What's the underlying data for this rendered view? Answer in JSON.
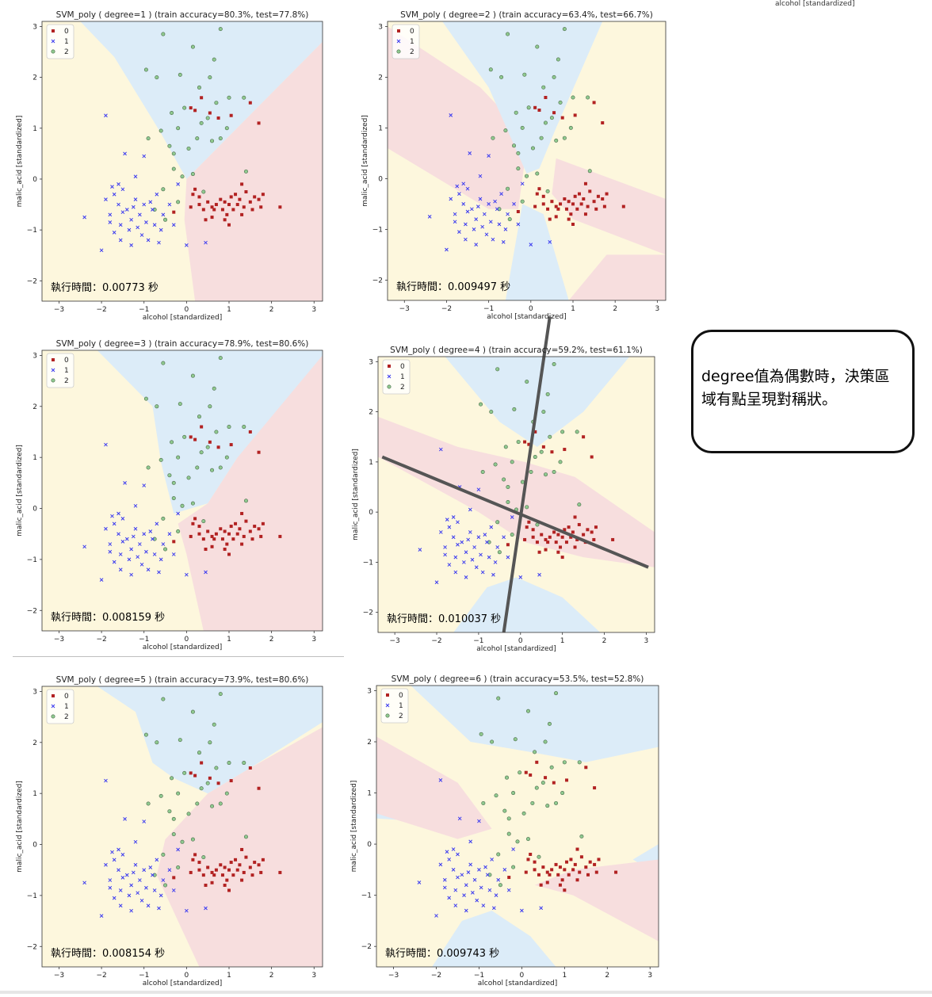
{
  "stray_label": "alcohol [standardized]",
  "note_text": "degree值為偶數時，決策區域有點呈現對稱狀。",
  "colors": {
    "class0_region": "#f7dede",
    "class1_region": "#fdf7dd",
    "class2_region": "#dcecf8",
    "class0_marker": "#b22222",
    "class1_marker": "#3a3af0",
    "class2_marker": "#8fc98f",
    "annotation_line": "#555555"
  },
  "chart_data": [
    {
      "type": "scatter",
      "title": "SVM_poly ( degree=1 ) (train accuracy=80.3%, test=77.8%)",
      "xlabel": "alcohol [standardized]",
      "ylabel": "malic_acid [standardized]",
      "xlim": [
        -3.4,
        3.2
      ],
      "ylim": [
        -2.4,
        3.1
      ],
      "xticks": [
        -3,
        -2,
        -1,
        0,
        1,
        2,
        3
      ],
      "yticks": [
        -2,
        -1,
        0,
        1,
        2,
        3
      ],
      "legend": [
        "0",
        "1",
        "2"
      ],
      "legend_position": "upper-left",
      "runtime_label": "執行時間：0.00773 秒"
    },
    {
      "type": "scatter",
      "title": "SVM_poly ( degree=2 ) (train accuracy=63.4%, test=66.7%)",
      "xlabel": "alcohol [standardized]",
      "ylabel": "malic_acid [standardized]",
      "xlim": [
        -3.4,
        3.2
      ],
      "ylim": [
        -2.4,
        3.1
      ],
      "xticks": [
        -3,
        -2,
        -1,
        0,
        1,
        2,
        3
      ],
      "yticks": [
        -2,
        -1,
        0,
        1,
        2,
        3
      ],
      "legend": [
        "0",
        "1",
        "2"
      ],
      "legend_position": "upper-left",
      "runtime_label": "執行時間：0.009497 秒"
    },
    {
      "type": "scatter",
      "title": "SVM_poly ( degree=3 ) (train accuracy=78.9%, test=80.6%)",
      "xlabel": "alcohol [standardized]",
      "ylabel": "malic_acid [standardized]",
      "xlim": [
        -3.4,
        3.2
      ],
      "ylim": [
        -2.4,
        3.1
      ],
      "xticks": [
        -3,
        -2,
        -1,
        0,
        1,
        2,
        3
      ],
      "yticks": [
        -2,
        -1,
        0,
        1,
        2,
        3
      ],
      "legend": [
        "0",
        "1",
        "2"
      ],
      "legend_position": "upper-left",
      "runtime_label": "執行時間：0.008159 秒"
    },
    {
      "type": "scatter",
      "title": "SVM_poly ( degree=4 ) (train accuracy=59.2%, test=61.1%)",
      "xlabel": "alcohol [standardized]",
      "ylabel": "malic_acid [standardized]",
      "xlim": [
        -3.4,
        3.2
      ],
      "ylim": [
        -2.4,
        3.1
      ],
      "xticks": [
        -3,
        -2,
        -1,
        0,
        1,
        2,
        3
      ],
      "yticks": [
        -2,
        -1,
        0,
        1,
        2,
        3
      ],
      "legend": [
        "0",
        "1",
        "2"
      ],
      "legend_position": "upper-left",
      "runtime_label": "執行時間：0.010037 秒",
      "annotation_lines": [
        {
          "from": [
            -3.3,
            1.1
          ],
          "to": [
            3.05,
            -1.1
          ]
        },
        {
          "from": [
            -0.4,
            -2.4
          ],
          "to": [
            0.7,
            3.9
          ]
        }
      ]
    },
    {
      "type": "scatter",
      "title": "SVM_poly ( degree=5 ) (train accuracy=73.9%, test=80.6%)",
      "xlabel": "alcohol [standardized]",
      "ylabel": "malic_acid [standardized]",
      "xlim": [
        -3.4,
        3.2
      ],
      "ylim": [
        -2.4,
        3.1
      ],
      "xticks": [
        -3,
        -2,
        -1,
        0,
        1,
        2,
        3
      ],
      "yticks": [
        -2,
        -1,
        0,
        1,
        2,
        3
      ],
      "legend": [
        "0",
        "1",
        "2"
      ],
      "legend_position": "upper-left",
      "runtime_label": "執行時間：0.008154 秒"
    },
    {
      "type": "scatter",
      "title": "SVM_poly ( degree=6 ) (train accuracy=53.5%, test=52.8%)",
      "xlabel": "alcohol [standardized]",
      "ylabel": "malic_acid [standardized]",
      "xlim": [
        -3.4,
        3.2
      ],
      "ylim": [
        -2.4,
        3.1
      ],
      "xticks": [
        -3,
        -2,
        -1,
        0,
        1,
        2,
        3
      ],
      "yticks": [
        -2,
        -1,
        0,
        1,
        2,
        3
      ],
      "legend": [
        "0",
        "1",
        "2"
      ],
      "legend_position": "upper-left",
      "runtime_label": "執行時間：0.009743 秒"
    }
  ],
  "points": {
    "class0": [
      [
        0.1,
        -0.55
      ],
      [
        0.3,
        -0.5
      ],
      [
        0.4,
        -0.6
      ],
      [
        0.5,
        -0.45
      ],
      [
        0.6,
        -0.55
      ],
      [
        0.7,
        -0.5
      ],
      [
        0.8,
        -0.4
      ],
      [
        0.85,
        -0.6
      ],
      [
        0.9,
        -0.45
      ],
      [
        1.0,
        -0.5
      ],
      [
        1.05,
        -0.35
      ],
      [
        1.1,
        -0.6
      ],
      [
        1.2,
        -0.5
      ],
      [
        1.25,
        -0.4
      ],
      [
        1.3,
        -0.7
      ],
      [
        1.35,
        -0.55
      ],
      [
        1.5,
        -0.45
      ],
      [
        1.55,
        -0.6
      ],
      [
        1.6,
        -0.35
      ],
      [
        1.7,
        -0.4
      ],
      [
        1.75,
        -0.55
      ],
      [
        1.8,
        -0.3
      ],
      [
        2.2,
        -0.55
      ],
      [
        0.9,
        -0.8
      ],
      [
        1.0,
        -0.9
      ],
      [
        0.6,
        -0.75
      ],
      [
        0.3,
        -0.35
      ],
      [
        0.15,
        -0.3
      ],
      [
        0.1,
        1.4
      ],
      [
        0.2,
        1.35
      ],
      [
        0.35,
        1.6
      ],
      [
        0.55,
        1.3
      ],
      [
        0.75,
        1.2
      ],
      [
        1.05,
        1.25
      ],
      [
        1.5,
        1.5
      ],
      [
        1.7,
        1.1
      ],
      [
        -0.3,
        -0.65
      ],
      [
        0.45,
        -0.8
      ],
      [
        1.4,
        -0.25
      ],
      [
        1.3,
        -0.1
      ],
      [
        0.95,
        -0.7
      ],
      [
        1.15,
        -0.3
      ],
      [
        0.65,
        -0.6
      ],
      [
        0.2,
        -0.2
      ]
    ],
    "class1": [
      [
        -2.4,
        -0.75
      ],
      [
        -1.9,
        -0.4
      ],
      [
        -1.8,
        -0.7
      ],
      [
        -1.7,
        -0.3
      ],
      [
        -1.6,
        -0.5
      ],
      [
        -1.55,
        -0.9
      ],
      [
        -1.5,
        -0.2
      ],
      [
        -1.4,
        -0.6
      ],
      [
        -1.35,
        -1.0
      ],
      [
        -1.3,
        -0.8
      ],
      [
        -1.2,
        -0.4
      ],
      [
        -1.1,
        -0.7
      ],
      [
        -1.05,
        -1.1
      ],
      [
        -1.0,
        -0.5
      ],
      [
        -0.95,
        -0.85
      ],
      [
        -0.9,
        -1.2
      ],
      [
        -0.8,
        -0.6
      ],
      [
        -0.75,
        -0.9
      ],
      [
        -0.7,
        -0.3
      ],
      [
        -0.6,
        -1.0
      ],
      [
        -0.55,
        -0.7
      ],
      [
        -0.4,
        -0.5
      ],
      [
        -0.3,
        -0.9
      ],
      [
        -1.9,
        1.25
      ],
      [
        -1.45,
        0.5
      ],
      [
        -1.75,
        -0.15
      ],
      [
        -2.0,
        -1.4
      ],
      [
        -1.3,
        -1.3
      ],
      [
        -1.6,
        -0.1
      ],
      [
        -1.15,
        -0.95
      ],
      [
        -0.85,
        -0.45
      ],
      [
        -0.65,
        -1.25
      ],
      [
        -1.25,
        -0.55
      ],
      [
        -1.7,
        -1.05
      ],
      [
        -1.5,
        -0.65
      ],
      [
        0.45,
        -1.25
      ],
      [
        0.0,
        -1.3
      ],
      [
        -0.2,
        -0.1
      ],
      [
        -1.0,
        0.45
      ],
      [
        -1.2,
        0.05
      ],
      [
        -1.8,
        -0.85
      ],
      [
        -1.55,
        -1.2
      ]
    ],
    "class2": [
      [
        -0.55,
        2.85
      ],
      [
        0.15,
        2.6
      ],
      [
        0.8,
        2.95
      ],
      [
        -0.95,
        2.15
      ],
      [
        -0.7,
        2.0
      ],
      [
        -0.15,
        2.05
      ],
      [
        0.3,
        1.8
      ],
      [
        0.55,
        2.0
      ],
      [
        0.65,
        2.35
      ],
      [
        1.0,
        1.6
      ],
      [
        1.35,
        1.6
      ],
      [
        -0.35,
        1.3
      ],
      [
        -0.2,
        1.0
      ],
      [
        -0.6,
        0.95
      ],
      [
        -0.9,
        0.8
      ],
      [
        -0.4,
        0.65
      ],
      [
        -0.3,
        0.5
      ],
      [
        0.05,
        0.6
      ],
      [
        0.25,
        0.8
      ],
      [
        0.5,
        1.2
      ],
      [
        0.6,
        0.75
      ],
      [
        0.8,
        0.8
      ],
      [
        0.95,
        1.0
      ],
      [
        -0.3,
        0.2
      ],
      [
        -0.1,
        0.05
      ],
      [
        0.15,
        0.1
      ],
      [
        1.4,
        0.15
      ],
      [
        -0.75,
        -0.6
      ],
      [
        -0.5,
        -0.8
      ],
      [
        -0.2,
        -0.45
      ],
      [
        0.4,
        -0.25
      ],
      [
        -0.55,
        -0.2
      ],
      [
        0.35,
        1.1
      ],
      [
        -0.05,
        1.4
      ],
      [
        0.7,
        1.5
      ]
    ]
  }
}
